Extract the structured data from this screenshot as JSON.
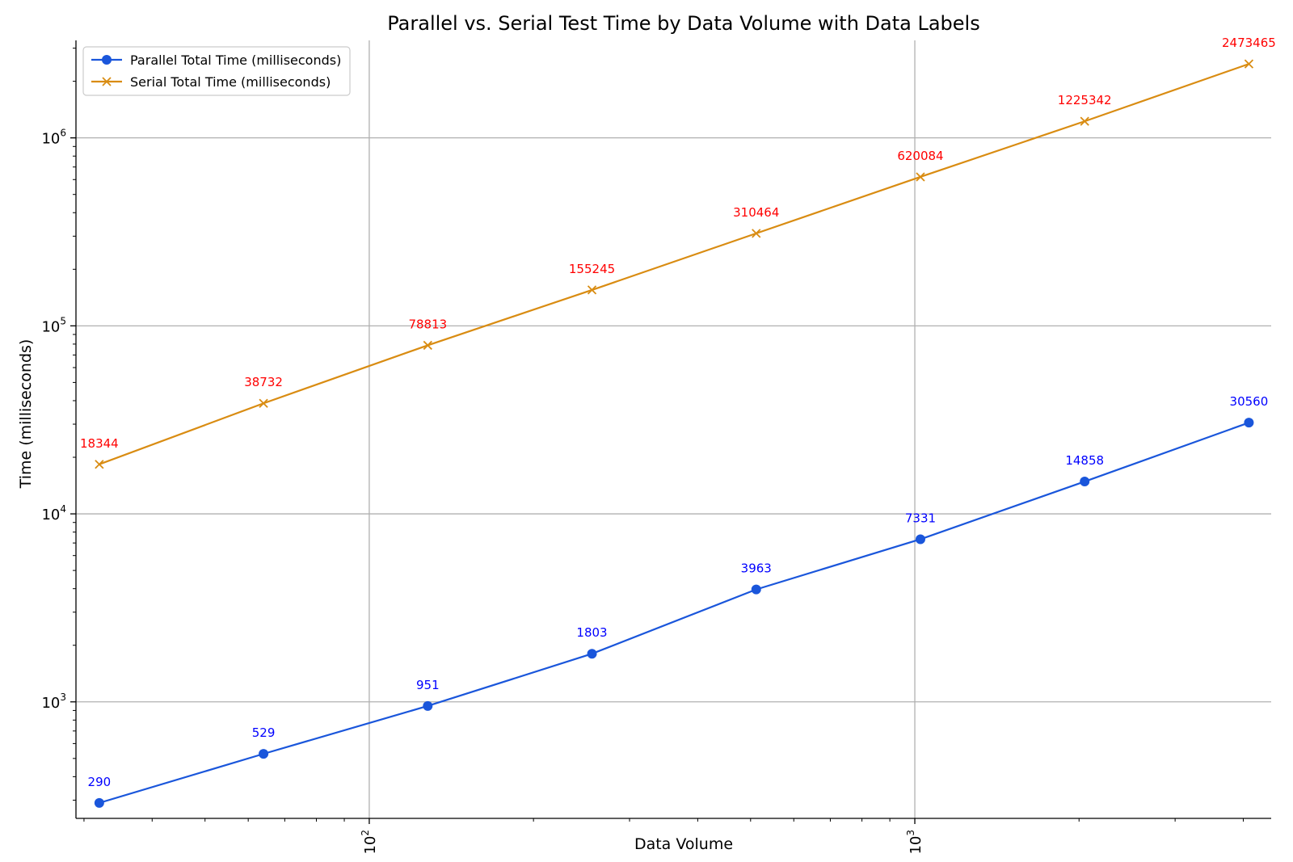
{
  "chart_data": {
    "type": "line",
    "title": "Parallel vs. Serial Test Time by Data Volume with Data Labels",
    "xlabel": "Data Volume",
    "ylabel": "Time (milliseconds)",
    "xscale": "log",
    "yscale": "log",
    "xlim": [
      29,
      4500
    ],
    "ylim": [
      240,
      3300000
    ],
    "grid": true,
    "legend_position": "top-left",
    "x": [
      32,
      64,
      128,
      256,
      512,
      1024,
      2048,
      4096
    ],
    "x_ticks": [
      {
        "value": 100,
        "base": "10",
        "exp": "2"
      },
      {
        "value": 1000,
        "base": "10",
        "exp": "3"
      }
    ],
    "y_ticks": [
      {
        "value": 1000,
        "base": "10",
        "exp": "3"
      },
      {
        "value": 10000,
        "base": "10",
        "exp": "4"
      },
      {
        "value": 100000,
        "base": "10",
        "exp": "5"
      },
      {
        "value": 1000000,
        "base": "10",
        "exp": "6"
      }
    ],
    "series": [
      {
        "name": "Parallel Total Time (milliseconds)",
        "color": "#1a56db",
        "label_color": "#0000ff",
        "marker": "circle",
        "values": [
          290,
          529,
          951,
          1803,
          3963,
          7331,
          14858,
          30560
        ],
        "labels": [
          "290",
          "529",
          "951",
          "1803",
          "3963",
          "7331",
          "14858",
          "30560"
        ]
      },
      {
        "name": "Serial Total Time (milliseconds)",
        "color": "#d98c12",
        "label_color": "#ff0000",
        "marker": "x",
        "values": [
          18344,
          38732,
          78813,
          155245,
          310464,
          620084,
          1225342,
          2473465
        ],
        "labels": [
          "18344",
          "38732",
          "78813",
          "155245",
          "310464",
          "620084",
          "1225342",
          "2473465"
        ]
      }
    ]
  }
}
